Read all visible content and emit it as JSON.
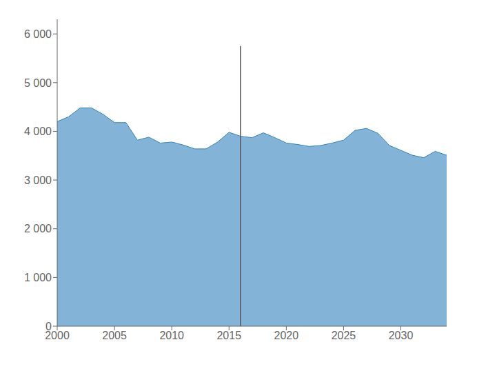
{
  "chart_data": {
    "type": "area",
    "x": [
      2000,
      2001,
      2002,
      2003,
      2004,
      2005,
      2006,
      2007,
      2008,
      2009,
      2010,
      2011,
      2012,
      2013,
      2014,
      2015,
      2016,
      2017,
      2018,
      2019,
      2020,
      2021,
      2022,
      2023,
      2024,
      2025,
      2026,
      2027,
      2028,
      2029,
      2030,
      2031,
      2032,
      2033,
      2034
    ],
    "values": [
      4200,
      4300,
      4480,
      4480,
      4350,
      4180,
      4180,
      3820,
      3880,
      3760,
      3780,
      3720,
      3640,
      3640,
      3780,
      3980,
      3900,
      3870,
      3970,
      3870,
      3760,
      3730,
      3690,
      3710,
      3760,
      3820,
      4020,
      4060,
      3960,
      3710,
      3610,
      3510,
      3460,
      3590,
      3510
    ],
    "color": "#3182bd",
    "vertical_line": {
      "x": 2016,
      "ymin": 0,
      "ymax": 5750,
      "color": "#555555"
    },
    "xlim": [
      2000,
      2034
    ],
    "xticks": [
      2000,
      2005,
      2010,
      2015,
      2020,
      2025,
      2030
    ],
    "ylim": [
      0,
      6300
    ],
    "yticks": [
      0,
      {
        "value": 1000,
        "label": "1 000"
      },
      {
        "value": 2000,
        "label": "2 000"
      },
      {
        "value": 3000,
        "label": "3 000"
      },
      {
        "value": 4000,
        "label": "4 000"
      },
      {
        "value": 5000,
        "label": "5 000"
      },
      {
        "value": 6000,
        "label": "6 000"
      }
    ],
    "grid": false
  }
}
